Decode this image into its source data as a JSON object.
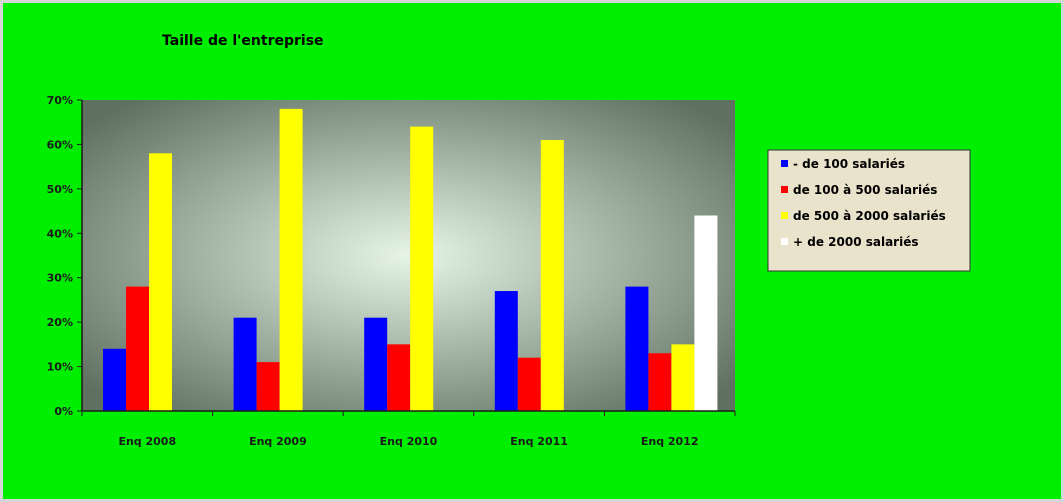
{
  "colors": {
    "background": "#00ee00",
    "plot_center": "#e6f5e6",
    "plot_edge": "#5f7060",
    "legend_bg": "#eae3cc",
    "axis": "#1a1a1a"
  },
  "chart_data": {
    "type": "bar",
    "title": "Taille de l'entreprise",
    "xlabel": "",
    "ylabel": "",
    "categories": [
      "Enq 2008",
      "Enq 2009",
      "Enq 2010",
      "Enq 2011",
      "Enq 2012"
    ],
    "series": [
      {
        "name": "- de 100 salariés",
        "color": "#0000ff",
        "values": [
          14,
          21,
          21,
          27,
          28
        ]
      },
      {
        "name": "de 100 à 500 salariés",
        "color": "#ff0000",
        "values": [
          28,
          11,
          15,
          12,
          13
        ]
      },
      {
        "name": "de 500 à 2000 salariés",
        "color": "#ffff00",
        "values": [
          58,
          68,
          64,
          61,
          15
        ]
      },
      {
        "name": "+ de 2000 salariés",
        "color": "#ffffff",
        "values": [
          null,
          null,
          null,
          null,
          44
        ]
      }
    ],
    "ylim": [
      0,
      70
    ],
    "yticks": [
      "0%",
      "10%",
      "20%",
      "30%",
      "40%",
      "50%",
      "60%",
      "70%"
    ],
    "grid": false,
    "legend_position": "right"
  }
}
